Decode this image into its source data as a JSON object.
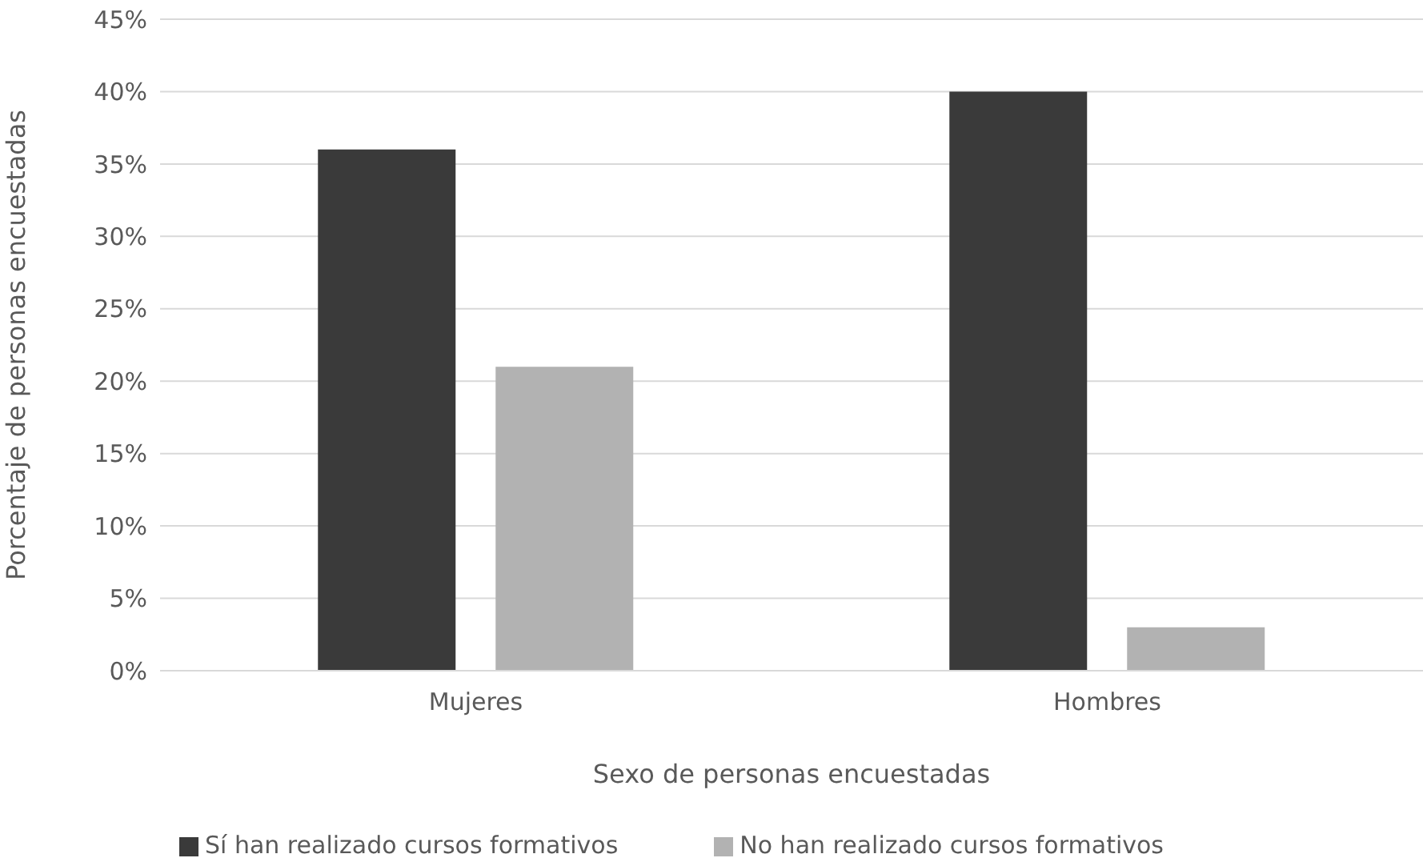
{
  "chart_data": {
    "type": "bar",
    "xlabel": "Sexo de personas encuestadas",
    "ylabel": "Porcentaje de personas encuestadas",
    "categories": [
      "Mujeres",
      "Hombres"
    ],
    "series": [
      {
        "name": "Sí han realizado cursos formativos",
        "color": "#3a3a3a",
        "values": [
          36,
          40
        ]
      },
      {
        "name": "No han realizado cursos formativos",
        "color": "#b2b2b2",
        "values": [
          21,
          3
        ]
      }
    ],
    "ylim": [
      0,
      45
    ],
    "yticks": [
      {
        "value": 0,
        "label": "0%"
      },
      {
        "value": 5,
        "label": "5%"
      },
      {
        "value": 10,
        "label": "10%"
      },
      {
        "value": 15,
        "label": "15%"
      },
      {
        "value": 20,
        "label": "20%"
      },
      {
        "value": 25,
        "label": "25%"
      },
      {
        "value": 30,
        "label": "30%"
      },
      {
        "value": 35,
        "label": "35%"
      },
      {
        "value": 40,
        "label": "40%"
      },
      {
        "value": 45,
        "label": "45%"
      }
    ],
    "grid": "y",
    "legend": "bottom"
  }
}
